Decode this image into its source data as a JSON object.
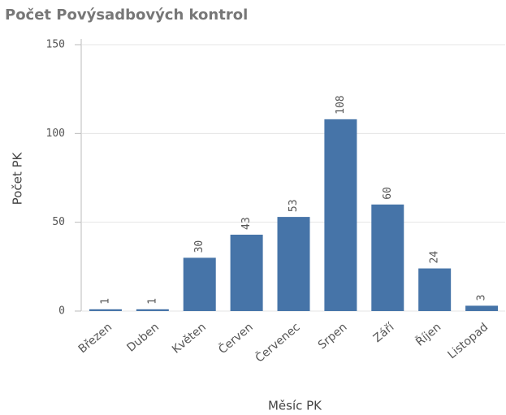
{
  "chart_data": {
    "type": "bar",
    "title": "Počet Povýsadbových kontrol",
    "x_label": "Měsíc PK",
    "y_label": "Počet PK",
    "categories": [
      "Březen",
      "Duben",
      "Květen",
      "Červen",
      "Červenec",
      "Srpen",
      "Září",
      "Říjen",
      "Listopad"
    ],
    "values": [
      1,
      1,
      30,
      43,
      53,
      108,
      60,
      24,
      3
    ],
    "color": "#4674a8",
    "ylim": [
      0,
      150
    ],
    "yticks": [
      0,
      50,
      100,
      150
    ],
    "grid": true
  }
}
